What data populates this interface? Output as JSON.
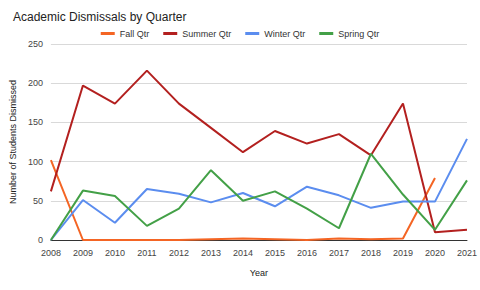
{
  "chart_data": {
    "type": "line",
    "title": "Academic Dismissals by Quarter",
    "x_label": "Year",
    "y_label": "Number of Students Dismissed",
    "categories": [
      "2008",
      "2009",
      "2010",
      "2011",
      "2012",
      "2013",
      "2014",
      "2015",
      "2016",
      "2017",
      "2018",
      "2019",
      "2020",
      "2021"
    ],
    "series": [
      {
        "name": "Fall Qtr",
        "color": "#f46524",
        "values": [
          102,
          0,
          0,
          0,
          0,
          1,
          2,
          1,
          0,
          2,
          1,
          2,
          79,
          null
        ]
      },
      {
        "name": "Summer Qtr",
        "color": "#b3201f",
        "values": [
          62,
          197,
          174,
          216,
          174,
          143,
          112,
          139,
          123,
          135,
          108,
          174,
          10,
          13
        ]
      },
      {
        "name": "Winter Qtr",
        "color": "#5b8def",
        "values": [
          0,
          51,
          22,
          65,
          59,
          48,
          60,
          43,
          68,
          57,
          41,
          49,
          49,
          129
        ]
      },
      {
        "name": "Spring Qtr",
        "color": "#43a047",
        "values": [
          0,
          63,
          56,
          18,
          40,
          89,
          50,
          62,
          40,
          15,
          110,
          58,
          13,
          76
        ]
      }
    ],
    "ylim": [
      0,
      250
    ],
    "yticks": [
      0,
      50,
      100,
      150,
      200,
      250
    ],
    "grid": true,
    "legend": "top"
  }
}
